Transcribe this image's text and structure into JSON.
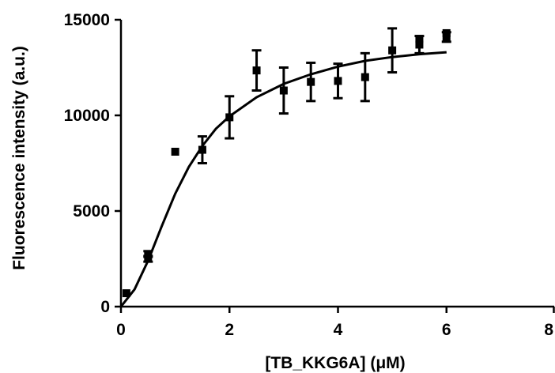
{
  "chart_data": {
    "type": "scatter",
    "title": "",
    "xlabel": "[TB_KKG6A] (μM)",
    "ylabel": "Fluorescence intensity (a.u.)",
    "xlim": [
      0,
      8
    ],
    "ylim": [
      0,
      15000
    ],
    "xticks": [
      0,
      2,
      4,
      6,
      8
    ],
    "yticks": [
      0,
      5000,
      10000,
      15000
    ],
    "grid": false,
    "legend": "none",
    "colors": {
      "marker": "#000000",
      "curve": "#000000",
      "axis": "#000000"
    },
    "series": [
      {
        "kind": "points-with-error-bars",
        "x": [
          0.1,
          0.5,
          0.5,
          1.0,
          1.5,
          2.0,
          2.5,
          3.0,
          3.5,
          4.0,
          4.5,
          5.0,
          5.5,
          5.5,
          6.0,
          6.0
        ],
        "y": [
          700,
          2500,
          2750,
          8100,
          8200,
          9900,
          12350,
          11300,
          11750,
          11800,
          12000,
          13400,
          13700,
          14000,
          14100,
          14300
        ],
        "error": [
          0,
          150,
          150,
          0,
          700,
          1100,
          1050,
          1200,
          1000,
          900,
          1250,
          1150,
          450,
          0,
          250,
          0
        ]
      },
      {
        "kind": "fit-curve",
        "x": [
          0.0,
          0.25,
          0.5,
          0.75,
          1.0,
          1.25,
          1.5,
          1.75,
          2.0,
          2.5,
          3.0,
          3.5,
          4.0,
          4.5,
          5.0,
          5.5,
          6.0
        ],
        "y": [
          0,
          900,
          2400,
          4200,
          5900,
          7300,
          8400,
          9300,
          9950,
          10950,
          11650,
          12150,
          12550,
          12850,
          13050,
          13200,
          13300
        ]
      }
    ]
  }
}
